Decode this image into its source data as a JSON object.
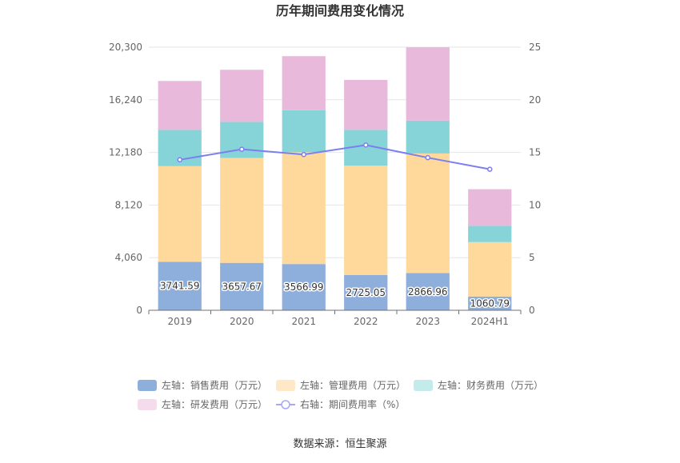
{
  "chart_data": {
    "type": "bar",
    "title": "历年期间费用变化情况",
    "categories": [
      "2019",
      "2020",
      "2021",
      "2022",
      "2023",
      "2024H1"
    ],
    "left_axis": {
      "ticks": [
        "0",
        "4,060",
        "8,120",
        "12,180",
        "16,240",
        "20,300"
      ],
      "ylim": [
        0,
        20300
      ]
    },
    "right_axis": {
      "ticks": [
        "0",
        "5",
        "10",
        "15",
        "20",
        "25"
      ],
      "ylim": [
        0,
        25
      ]
    },
    "stacked": true,
    "series": [
      {
        "name": "左轴：销售费用（万元）",
        "kind": "bar",
        "color": "#8eaedb",
        "values": [
          3741.59,
          3657.67,
          3566.99,
          2725.05,
          2866.96,
          1060.79
        ],
        "labels": [
          "3741.59",
          "3657.67",
          "3566.99",
          "2725.05",
          "2866.96",
          "1060.79"
        ]
      },
      {
        "name": "左轴：管理费用（万元）",
        "kind": "bar",
        "color": "#fed99b",
        "values": [
          7380,
          8100,
          8630,
          8430,
          9230,
          4200
        ]
      },
      {
        "name": "左轴：财务费用（万元）",
        "kind": "bar",
        "color": "#86d4d8",
        "values": [
          2800,
          2780,
          3240,
          2770,
          2540,
          1260
        ]
      },
      {
        "name": "左轴：研发费用（万元）",
        "kind": "bar",
        "color": "#e8b9da",
        "values": [
          3770,
          4020,
          4170,
          3850,
          5660,
          2820
        ]
      },
      {
        "name": "右轴：期间费用率（%）",
        "kind": "line",
        "color": "#7b7ff0",
        "values": [
          14.3,
          15.3,
          14.8,
          15.7,
          14.5,
          13.4
        ]
      }
    ],
    "legend_position": "bottom",
    "grid": true
  },
  "footer": {
    "source": "数据来源：恒生聚源"
  }
}
